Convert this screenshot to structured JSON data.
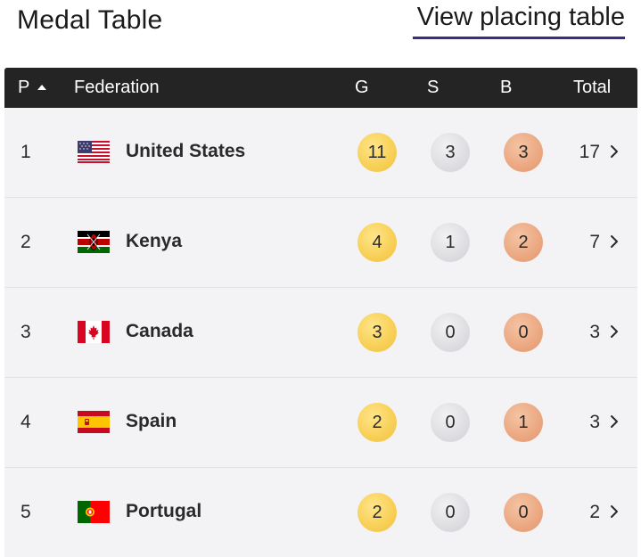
{
  "header": {
    "title": "Medal Table",
    "view_link": "View placing table"
  },
  "table": {
    "columns": {
      "position": "P",
      "federation": "Federation",
      "gold": "G",
      "silver": "S",
      "bronze": "B",
      "total": "Total"
    },
    "sort": {
      "column": "P",
      "direction": "ascending"
    },
    "rows": [
      {
        "pos": "1",
        "country": "United States",
        "flag": "usa-flag-icon",
        "gold": "11",
        "silver": "3",
        "bronze": "3",
        "total": "17"
      },
      {
        "pos": "2",
        "country": "Kenya",
        "flag": "kenya-flag-icon",
        "gold": "4",
        "silver": "1",
        "bronze": "2",
        "total": "7"
      },
      {
        "pos": "3",
        "country": "Canada",
        "flag": "canada-flag-icon",
        "gold": "3",
        "silver": "0",
        "bronze": "0",
        "total": "3"
      },
      {
        "pos": "4",
        "country": "Spain",
        "flag": "spain-flag-icon",
        "gold": "2",
        "silver": "0",
        "bronze": "1",
        "total": "3"
      },
      {
        "pos": "5",
        "country": "Portugal",
        "flag": "portugal-flag-icon",
        "gold": "2",
        "silver": "0",
        "bronze": "0",
        "total": "2"
      }
    ]
  },
  "colors": {
    "header_bg": "#242424",
    "row_bg": "#f3f3f6",
    "gold": "#f7cf55",
    "silver": "#dcdce0",
    "bronze": "#eaa57e",
    "link_underline": "#3b2a86"
  }
}
